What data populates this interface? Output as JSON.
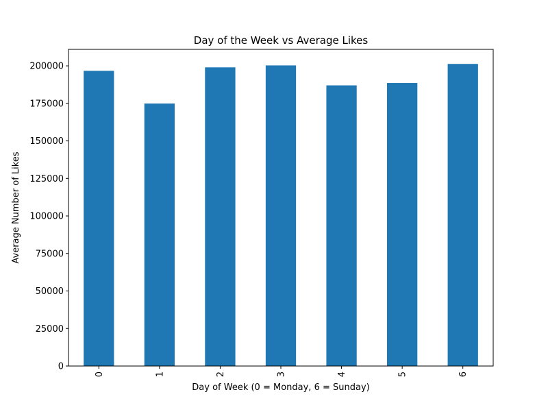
{
  "chart_data": {
    "type": "bar",
    "title": "Day of the Week vs Average Likes",
    "xlabel": "Day of Week (0 = Monday, 6 = Sunday)",
    "ylabel": "Average Number of Likes",
    "categories": [
      "0",
      "1",
      "2",
      "3",
      "4",
      "5",
      "6"
    ],
    "values": [
      196700,
      174900,
      199000,
      200300,
      187000,
      188600,
      201300
    ],
    "ylim": [
      0,
      211000
    ],
    "yticks": [
      0,
      25000,
      50000,
      75000,
      100000,
      125000,
      150000,
      175000,
      200000
    ],
    "ytick_labels": [
      "0",
      "25000",
      "50000",
      "75000",
      "100000",
      "125000",
      "150000",
      "175000",
      "200000"
    ],
    "xtick_rotation": "vertical",
    "grid": false,
    "legend": false,
    "colors": {
      "bar": "#1f77b4"
    }
  }
}
